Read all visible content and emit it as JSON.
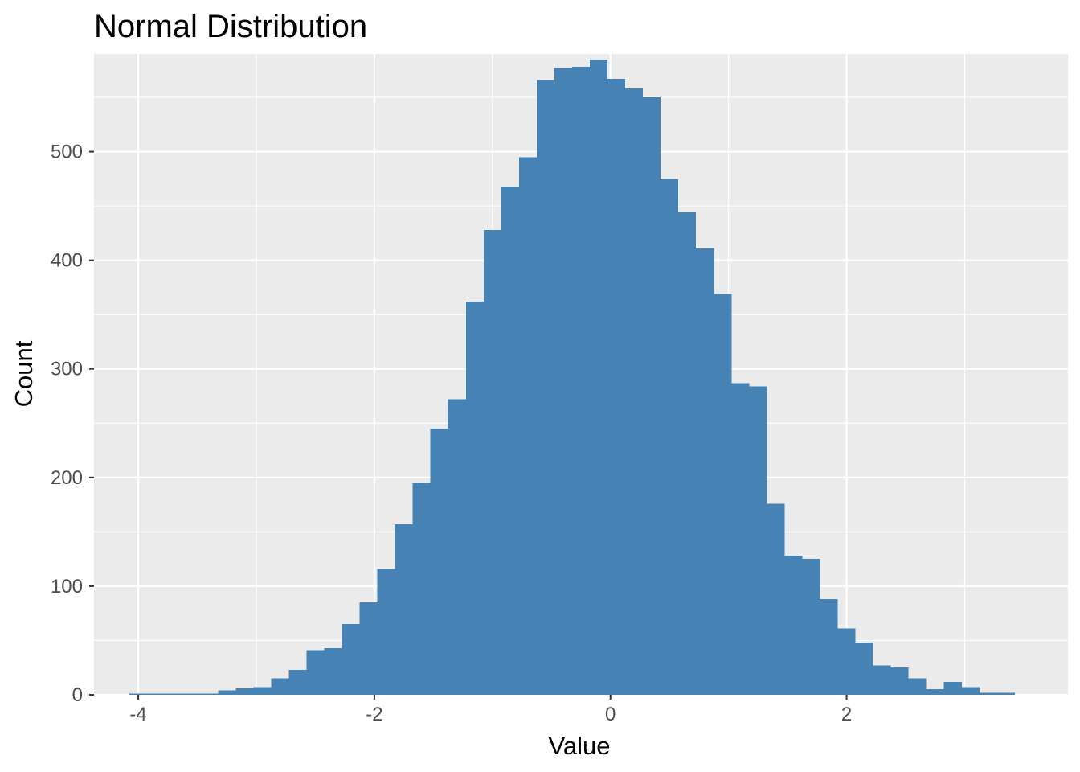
{
  "chart_data": {
    "type": "bar",
    "title": "Normal Distribution",
    "xlabel": "Value",
    "ylabel": "Count",
    "bin_width": 0.15,
    "bins_x": [
      -4.0,
      -3.85,
      -3.7,
      -3.55,
      -3.4,
      -3.25,
      -3.1,
      -2.95,
      -2.8,
      -2.65,
      -2.5,
      -2.35,
      -2.2,
      -2.05,
      -1.9,
      -1.75,
      -1.6,
      -1.45,
      -1.3,
      -1.15,
      -1.0,
      -0.85,
      -0.7,
      -0.55,
      -0.4,
      -0.25,
      -0.1,
      0.05,
      0.2,
      0.35,
      0.5,
      0.65,
      0.8,
      0.95,
      1.1,
      1.25,
      1.4,
      1.55,
      1.7,
      1.85,
      2.0,
      2.15,
      2.3,
      2.45,
      2.6,
      2.75,
      2.9,
      3.05,
      3.2,
      3.35,
      3.5
    ],
    "values": [
      1,
      1,
      1,
      1,
      1,
      4,
      6,
      7,
      15,
      23,
      41,
      43,
      65,
      85,
      116,
      157,
      195,
      245,
      272,
      362,
      428,
      468,
      495,
      566,
      577,
      578,
      585,
      567,
      558,
      550,
      475,
      444,
      411,
      369,
      287,
      284,
      176,
      128,
      125,
      88,
      61,
      48,
      27,
      25,
      15,
      5,
      12,
      7,
      2,
      2
    ],
    "xlim": [
      -4.375,
      3.875
    ],
    "ylim": [
      0,
      590
    ],
    "x_ticks": [
      -4,
      -2,
      0,
      2
    ],
    "x_tick_labels": [
      "-4",
      "-2",
      "0",
      "2"
    ],
    "y_ticks": [
      0,
      100,
      200,
      300,
      400,
      500
    ],
    "y_tick_labels": [
      "0",
      "100",
      "200",
      "300",
      "400",
      "500"
    ],
    "grid": true,
    "legend": "none",
    "colors": {
      "bar": "#4682B4",
      "panel": "#EBEBEB",
      "grid": "#FFFFFF"
    }
  }
}
